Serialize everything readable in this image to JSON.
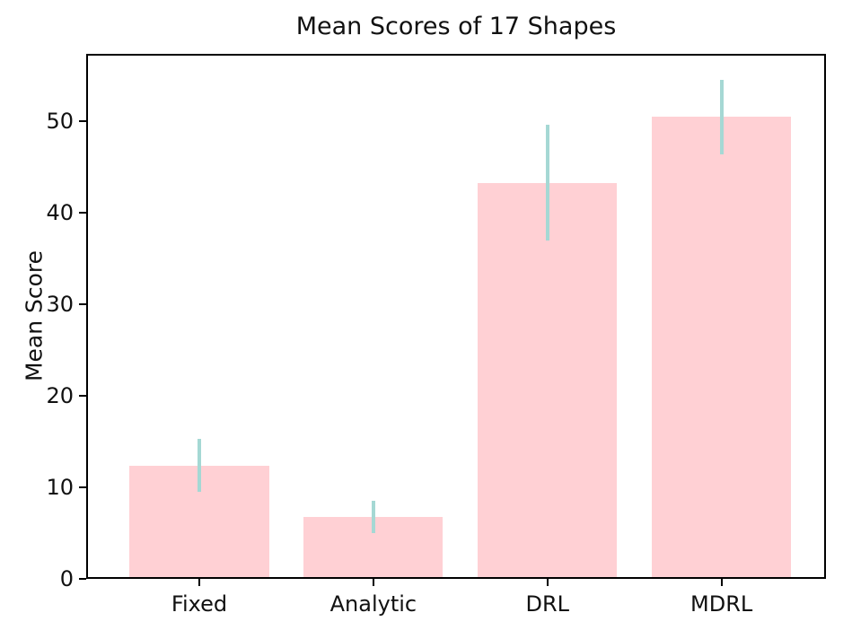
{
  "chart_data": {
    "type": "bar",
    "title": "Mean Scores of 17 Shapes",
    "xlabel": "",
    "ylabel": "Mean Score",
    "categories": [
      "Fixed",
      "Analytic",
      "DRL",
      "MDRL"
    ],
    "values": [
      12.4,
      6.8,
      43.3,
      50.5
    ],
    "errors": [
      2.9,
      1.75,
      6.3,
      4.1
    ],
    "yticks": [
      0,
      10,
      20,
      30,
      40,
      50
    ],
    "ylim": [
      0,
      57.4
    ],
    "xlim": [
      -0.65,
      3.6
    ],
    "bar_width": 0.8,
    "grid": false,
    "legend_position": "none",
    "colors": {
      "bar_fill": "#ffd0d4",
      "error_line": "#a5d8d4",
      "spine": "#000000",
      "text": "#111111",
      "background": "#ffffff"
    }
  }
}
